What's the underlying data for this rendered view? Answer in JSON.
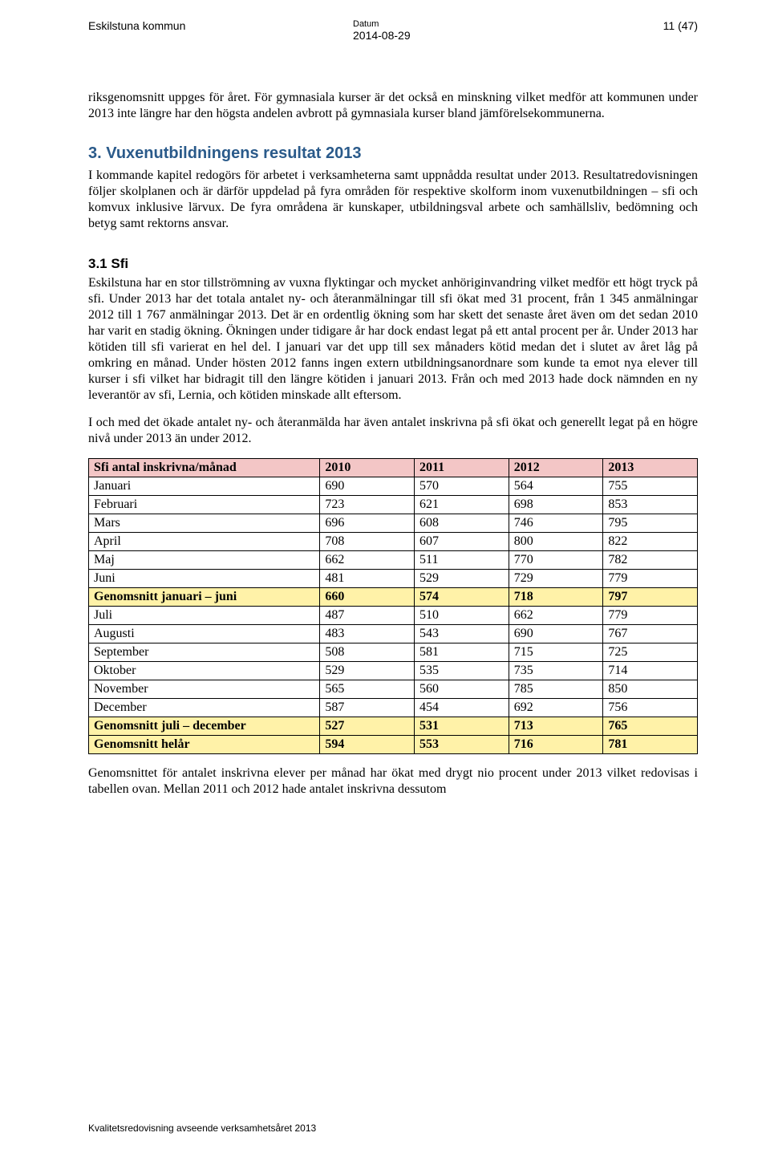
{
  "header": {
    "org": "Eskilstuna kommun",
    "datum_label": "Datum",
    "datum": "2014-08-29",
    "page_num": "11 (47)"
  },
  "para_intro": "riksgenomsnitt uppges för året. För gymnasiala kurser är det också en minskning vilket medför att kommunen under 2013 inte längre har den högsta andelen avbrott på gymnasiala kurser bland jämförelsekommunerna.",
  "h2": "3. Vuxenutbildningens resultat 2013",
  "para_h2": "I kommande kapitel redogörs för arbetet i verksamheterna samt uppnådda resultat under 2013. Resultatredovisningen följer skolplanen och är därför uppdelad på fyra områden för respektive skolform inom vuxenutbildningen – sfi och komvux inklusive lärvux. De fyra områdena är kunskaper, utbildningsval arbete och samhällsliv, bedömning och betyg samt rektorns ansvar.",
  "h3": "3.1 Sfi",
  "para_sfi1": "Eskilstuna har en stor tillströmning av vuxna flyktingar och mycket anhöriginvandring vilket medför ett högt tryck på sfi. Under 2013 har det totala antalet ny- och återanmälningar till sfi ökat med 31 procent, från 1 345 anmälningar 2012 till 1 767 anmälningar 2013. Det är en ordentlig ökning som har skett det senaste året även om det sedan 2010 har varit en stadig ökning. Ökningen under tidigare år har dock endast legat på ett antal procent per år. Under 2013 har kötiden till sfi varierat en hel del. I januari var det upp till sex månaders kötid medan det i slutet av året låg på omkring en månad. Under hösten 2012 fanns ingen extern utbildningsanordnare som kunde ta emot nya elever till kurser i sfi vilket har bidragit till den längre kötiden i januari 2013. Från och med 2013 hade dock nämnden en ny leverantör av sfi, Lernia, och kötiden minskade allt eftersom.",
  "para_sfi2": "I och med det ökade antalet ny- och återanmälda har även antalet inskrivna på sfi ökat och generellt legat på en högre nivå under 2013 än under 2012.",
  "table": {
    "col_widths": [
      "38%",
      "15.5%",
      "15.5%",
      "15.5%",
      "15.5%"
    ],
    "header_bg": "#f3c6c6",
    "highlight_bg": "#fff2a8",
    "border_color": "#000000",
    "columns": [
      "Sfi antal inskrivna/månad",
      "2010",
      "2011",
      "2012",
      "2013"
    ],
    "rows": [
      {
        "label": "Januari",
        "vals": [
          "690",
          "570",
          "564",
          "755"
        ],
        "hl": false
      },
      {
        "label": "Februari",
        "vals": [
          "723",
          "621",
          "698",
          "853"
        ],
        "hl": false
      },
      {
        "label": "Mars",
        "vals": [
          "696",
          "608",
          "746",
          "795"
        ],
        "hl": false
      },
      {
        "label": "April",
        "vals": [
          "708",
          "607",
          "800",
          "822"
        ],
        "hl": false
      },
      {
        "label": "Maj",
        "vals": [
          "662",
          "511",
          "770",
          "782"
        ],
        "hl": false
      },
      {
        "label": "Juni",
        "vals": [
          "481",
          "529",
          "729",
          "779"
        ],
        "hl": false
      },
      {
        "label": "Genomsnitt januari – juni",
        "vals": [
          "660",
          "574",
          "718",
          "797"
        ],
        "hl": true
      },
      {
        "label": "Juli",
        "vals": [
          "487",
          "510",
          "662",
          "779"
        ],
        "hl": false
      },
      {
        "label": "Augusti",
        "vals": [
          "483",
          "543",
          "690",
          "767"
        ],
        "hl": false
      },
      {
        "label": "September",
        "vals": [
          "508",
          "581",
          "715",
          "725"
        ],
        "hl": false
      },
      {
        "label": "Oktober",
        "vals": [
          "529",
          "535",
          "735",
          "714"
        ],
        "hl": false
      },
      {
        "label": "November",
        "vals": [
          "565",
          "560",
          "785",
          "850"
        ],
        "hl": false
      },
      {
        "label": "December",
        "vals": [
          "587",
          "454",
          "692",
          "756"
        ],
        "hl": false
      },
      {
        "label": "Genomsnitt juli – december",
        "vals": [
          "527",
          "531",
          "713",
          "765"
        ],
        "hl": true
      },
      {
        "label": "Genomsnitt helår",
        "vals": [
          "594",
          "553",
          "716",
          "781"
        ],
        "hl": true
      }
    ]
  },
  "para_after_table": "Genomsnittet för antalet inskrivna elever per månad har ökat med drygt nio procent under 2013 vilket redovisas i tabellen ovan. Mellan 2011 och 2012 hade antalet inskrivna dessutom",
  "footer": "Kvalitetsredovisning avseende verksamhetsåret 2013"
}
